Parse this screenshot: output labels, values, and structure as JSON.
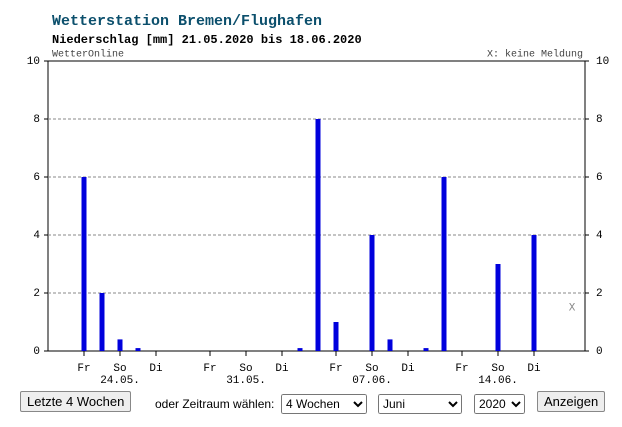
{
  "chart_data": {
    "type": "bar",
    "title": "Wetterstation Bremen/Flughafen",
    "subtitle": "Niederschlag [mm] 21.05.2020 bis 18.06.2020",
    "source": "WetterOnline",
    "note": "X: keine Meldung",
    "missing_marker": "X",
    "categories": [
      null,
      "Fr",
      null,
      "So",
      null,
      "Di",
      null,
      null,
      "Fr",
      null,
      "So",
      null,
      "Di",
      null,
      null,
      "Fr",
      null,
      "So",
      null,
      "Di",
      null,
      null,
      "Fr",
      null,
      "So",
      null,
      "Di",
      null,
      null
    ],
    "date_labels": [
      null,
      null,
      null,
      "24.05.",
      null,
      null,
      null,
      null,
      null,
      null,
      "31.05.",
      null,
      null,
      null,
      null,
      null,
      null,
      "07.06.",
      null,
      null,
      null,
      null,
      null,
      null,
      "14.06.",
      null,
      null,
      null,
      null
    ],
    "values": [
      0,
      6,
      2,
      0.4,
      0.1,
      0,
      0,
      0,
      0,
      0,
      0,
      0,
      0,
      0.1,
      8,
      1,
      0,
      4,
      0.4,
      0,
      0.1,
      6,
      0,
      0,
      3,
      0,
      4,
      0,
      null
    ],
    "color": "#0000dd",
    "ylim": [
      0,
      10
    ],
    "yticks": [
      0,
      2,
      4,
      6,
      8,
      10
    ],
    "y2lim": [
      0,
      10
    ],
    "y2ticks": [
      0,
      2,
      4,
      6,
      8,
      10
    ],
    "grid": true
  },
  "controls": {
    "last_weeks_button": "Letzte 4 Wochen",
    "period_label": "oder Zeitraum wählen:",
    "duration": "4 Wochen",
    "month": "Juni",
    "year": "2020",
    "submit": "Anzeigen"
  }
}
